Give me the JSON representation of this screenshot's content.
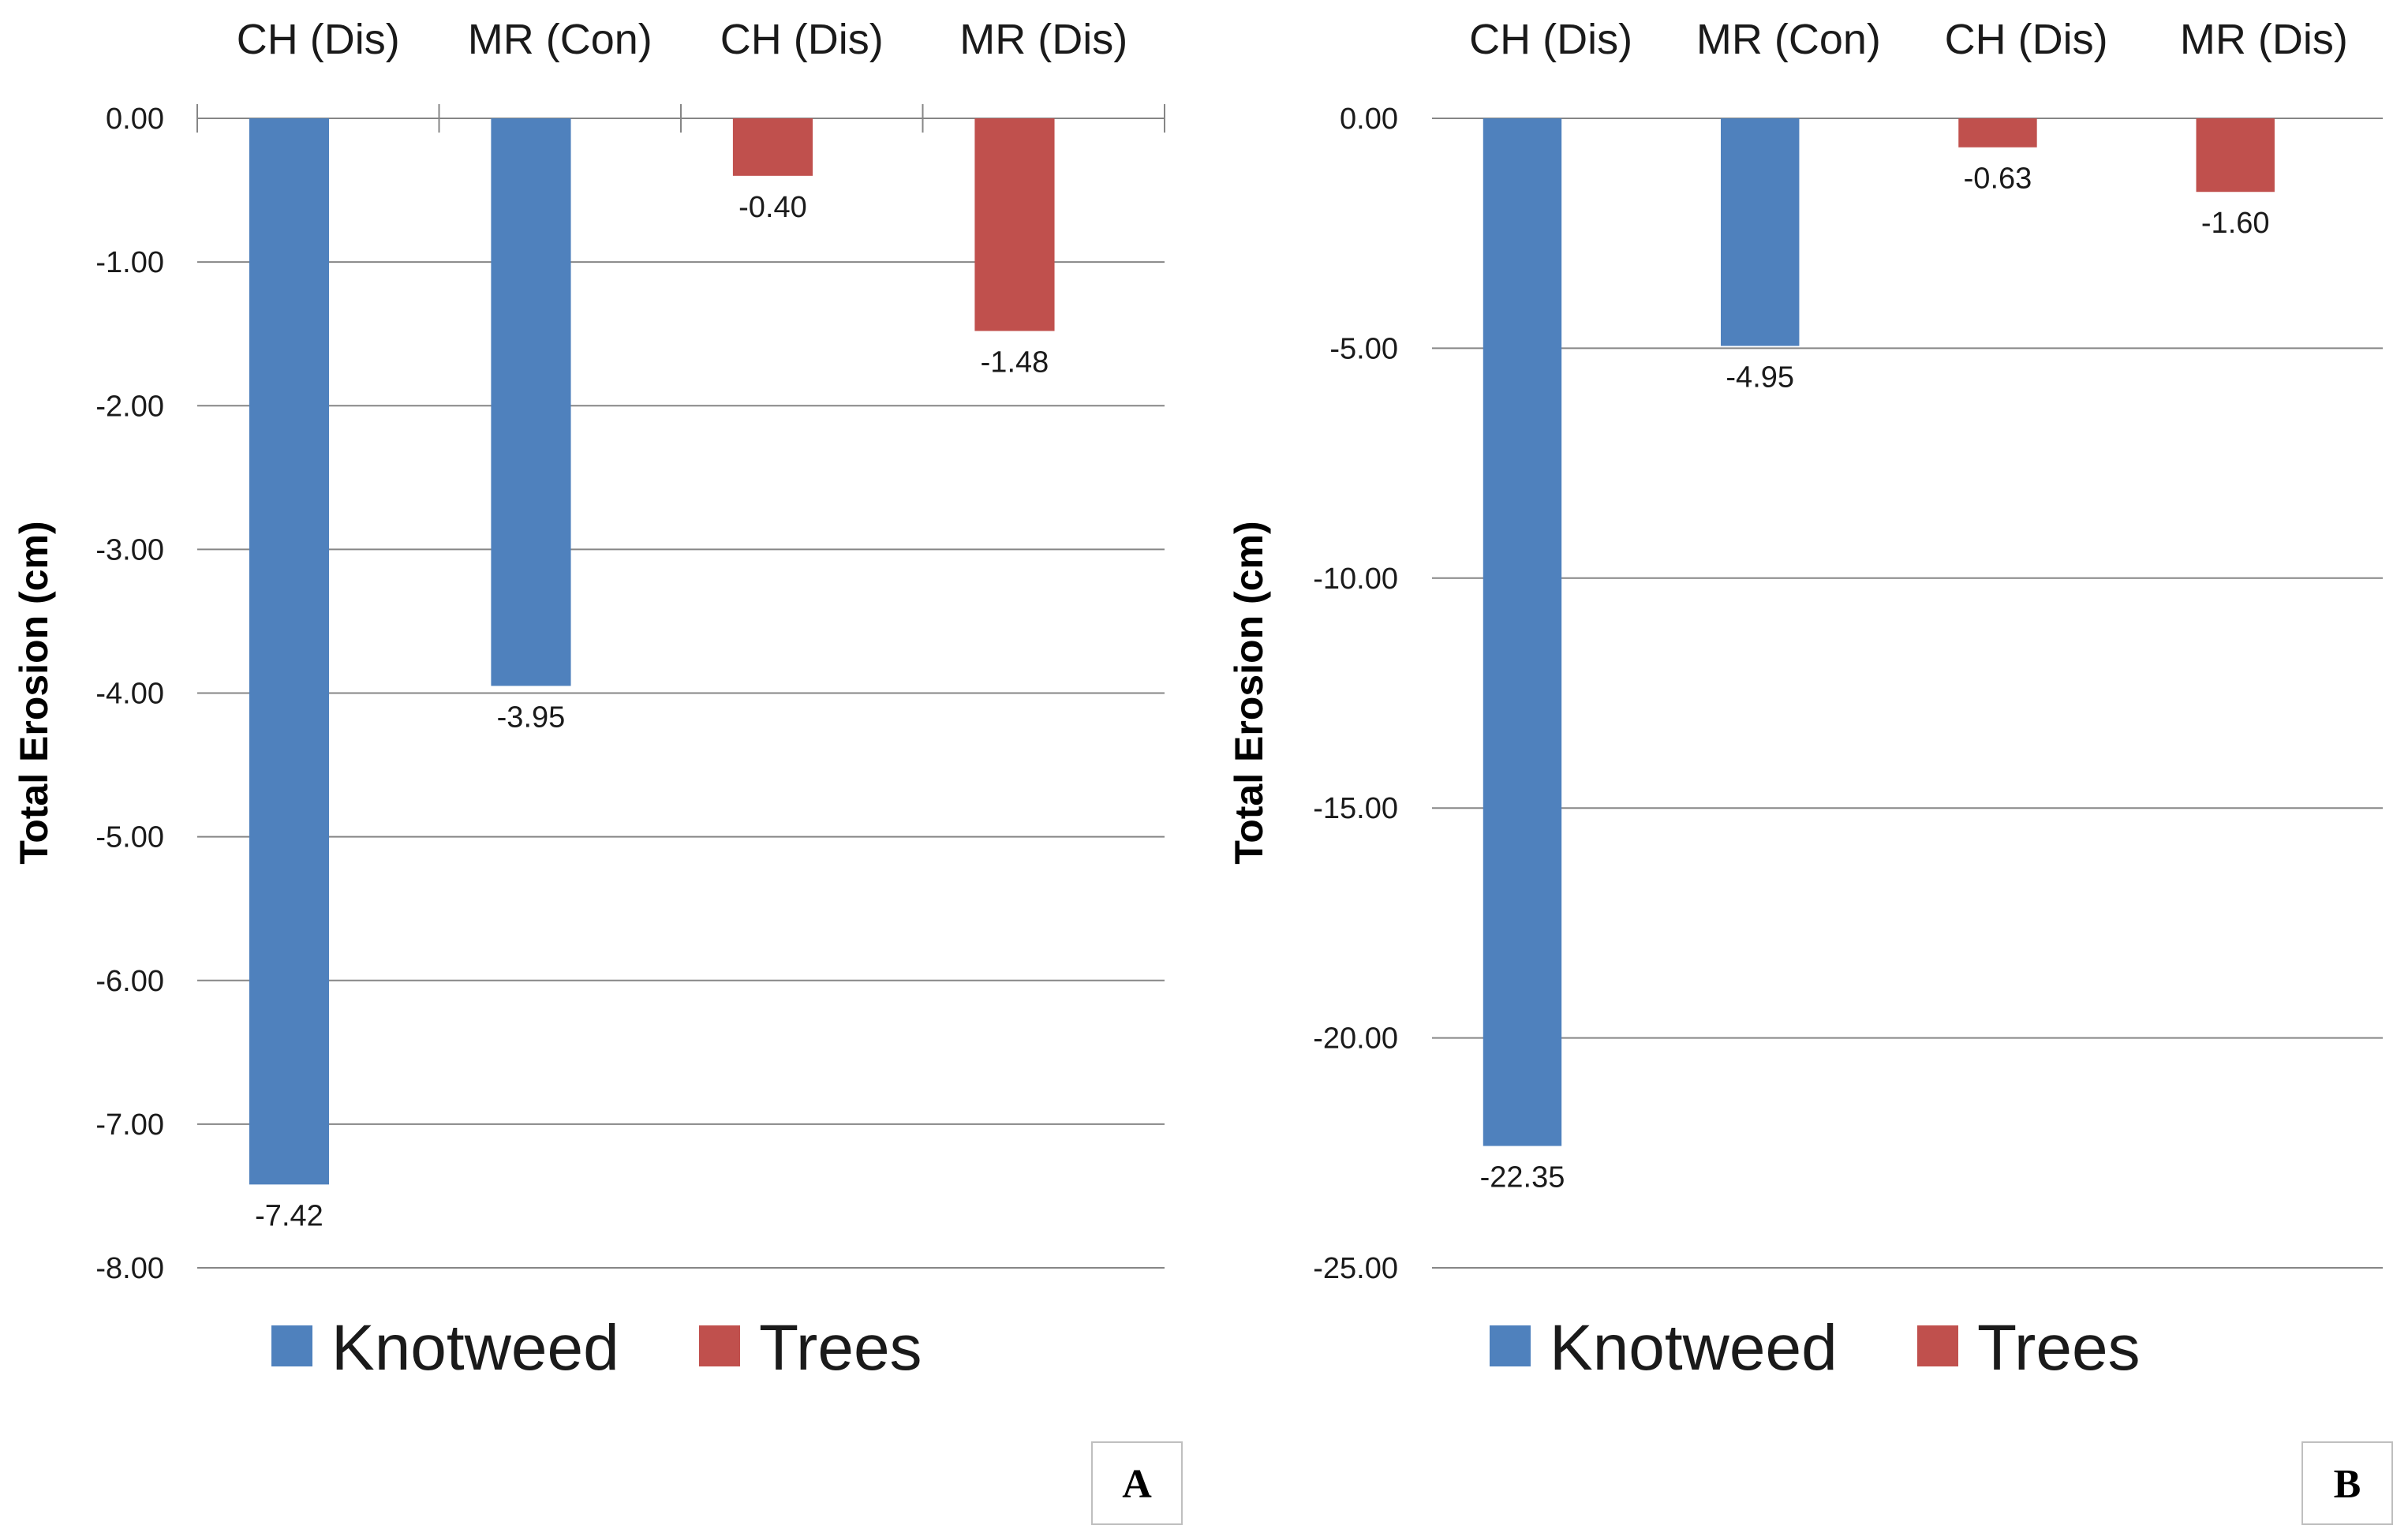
{
  "colors": {
    "knotweed": "#4f81bd",
    "trees": "#c0504d",
    "grid": "#868686",
    "axis": "#868686"
  },
  "chart_data": [
    {
      "type": "bar",
      "panel_label": "A",
      "categories": [
        "CH (Dis)",
        "MR (Con)",
        "CH (Dis)",
        "MR (Dis)"
      ],
      "series": [
        {
          "name": "Knotweed",
          "values": [
            -7.42,
            -3.95,
            null,
            null
          ]
        },
        {
          "name": "Trees",
          "values": [
            null,
            null,
            -0.4,
            -1.48
          ]
        }
      ],
      "data_labels": [
        "-7.42",
        "-3.95",
        "-0.40",
        "-1.48"
      ],
      "ylabel": "Total Erosion (cm)",
      "ylim": [
        -8,
        0
      ],
      "yticks": [
        0,
        -1,
        -2,
        -3,
        -4,
        -5,
        -6,
        -7,
        -8
      ],
      "ytick_labels": [
        "0.00",
        "-1.00",
        "-2.00",
        "-3.00",
        "-4.00",
        "-5.00",
        "-6.00",
        "-7.00",
        "-8.00"
      ],
      "grid": true,
      "category_tick_marks": true,
      "legend": [
        "Knotweed",
        "Trees"
      ],
      "legend_position": "bottom"
    },
    {
      "type": "bar",
      "panel_label": "B",
      "categories": [
        "CH (Dis)",
        "MR (Con)",
        "CH (Dis)",
        "MR (Dis)"
      ],
      "series": [
        {
          "name": "Knotweed",
          "values": [
            -22.35,
            -4.95,
            null,
            null
          ]
        },
        {
          "name": "Trees",
          "values": [
            null,
            null,
            -0.63,
            -1.6
          ]
        }
      ],
      "data_labels": [
        "-22.35",
        "-4.95",
        "-0.63",
        "-1.60"
      ],
      "ylabel": "Total Erosion (cm)",
      "ylim": [
        -25,
        0
      ],
      "yticks": [
        0,
        -5,
        -10,
        -15,
        -20,
        -25
      ],
      "ytick_labels": [
        "0.00",
        "-5.00",
        "-10.00",
        "-15.00",
        "-20.00",
        "-25.00"
      ],
      "grid": true,
      "category_tick_marks": false,
      "legend": [
        "Knotweed",
        "Trees"
      ],
      "legend_position": "bottom"
    }
  ]
}
